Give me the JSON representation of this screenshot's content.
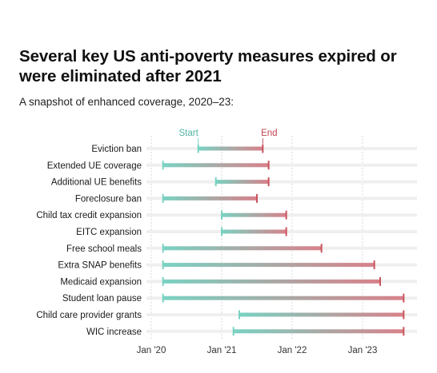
{
  "title": "Several key US anti-poverty measures expired or were eliminated after 2021",
  "subtitle": "A snapshot of enhanced coverage, 2020–23:",
  "colors": {
    "start": "#79d2c2",
    "end": "#c9545e",
    "start_label": "#4fb3a3",
    "end_label": "#c0434f",
    "grid": "#d9d9d9"
  },
  "chart_data": {
    "type": "range_bar",
    "title": "Several key US anti-poverty measures expired or were eliminated after 2021",
    "subtitle": "A snapshot of enhanced coverage, 2020–23:",
    "legend": {
      "start": "Start",
      "end": "End"
    },
    "x_axis": {
      "ticks": [
        "Jan '20",
        "Jan '21",
        "Jan '22",
        "Jan '23"
      ],
      "tick_dates": [
        "2020-01",
        "2021-01",
        "2022-01",
        "2023-01"
      ],
      "range": [
        "2020-01",
        "2023-08"
      ]
    },
    "grid": true,
    "series": [
      {
        "label": "Eviction ban",
        "start": "2020-09",
        "end": "2021-08"
      },
      {
        "label": "Extended UE coverage",
        "start": "2020-03",
        "end": "2021-09"
      },
      {
        "label": "Additional UE benefits",
        "start": "2020-12",
        "end": "2021-09"
      },
      {
        "label": "Foreclosure ban",
        "start": "2020-03",
        "end": "2021-07"
      },
      {
        "label": "Child tax credit expansion",
        "start": "2021-01",
        "end": "2021-12"
      },
      {
        "label": "EITC expansion",
        "start": "2021-01",
        "end": "2021-12"
      },
      {
        "label": "Free school meals",
        "start": "2020-03",
        "end": "2022-06"
      },
      {
        "label": "Extra SNAP benefits",
        "start": "2020-03",
        "end": "2023-03"
      },
      {
        "label": "Medicaid expansion",
        "start": "2020-03",
        "end": "2023-04"
      },
      {
        "label": "Student loan pause",
        "start": "2020-03",
        "end": "2023-08"
      },
      {
        "label": "Child care provider grants",
        "start": "2021-04",
        "end": "2023-08"
      },
      {
        "label": "WIC increase",
        "start": "2021-03",
        "end": "2023-08"
      }
    ]
  }
}
